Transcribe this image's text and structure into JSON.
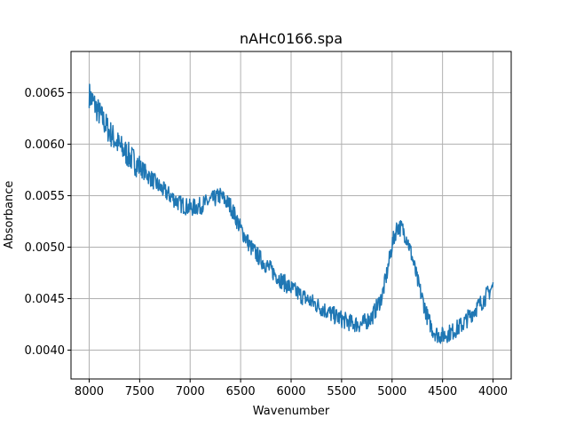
{
  "chart_data": {
    "type": "line",
    "title": "nAHc0166.spa",
    "xlabel": "Wavenumber",
    "ylabel": "Absorbance",
    "xlim": [
      8180,
      3820
    ],
    "ylim": [
      0.00372,
      0.0069
    ],
    "x_reversed": true,
    "grid": true,
    "x_ticks": [
      8000,
      7500,
      7000,
      6500,
      6000,
      5500,
      5000,
      4500,
      4000
    ],
    "x_tick_labels": [
      "8000",
      "7500",
      "7000",
      "6500",
      "6000",
      "5500",
      "5000",
      "4500",
      "4000"
    ],
    "y_ticks": [
      0.004,
      0.0045,
      0.005,
      0.0055,
      0.006,
      0.0065
    ],
    "y_tick_labels": [
      "0.0040",
      "0.0045",
      "0.0050",
      "0.0055",
      "0.0060",
      "0.0065"
    ],
    "series": [
      {
        "color": "#1f77b4",
        "x": [
          8000,
          7900,
          7800,
          7700,
          7600,
          7500,
          7400,
          7300,
          7200,
          7100,
          7000,
          6900,
          6800,
          6700,
          6600,
          6500,
          6400,
          6300,
          6200,
          6100,
          6000,
          5900,
          5800,
          5700,
          5600,
          5500,
          5400,
          5300,
          5200,
          5100,
          5050,
          5000,
          4950,
          4900,
          4850,
          4800,
          4750,
          4700,
          4650,
          4600,
          4550,
          4500,
          4400,
          4300,
          4200,
          4100,
          4000
        ],
        "y": [
          0.00648,
          0.0063,
          0.00612,
          0.00598,
          0.00588,
          0.00578,
          0.00568,
          0.00558,
          0.0055,
          0.00542,
          0.00538,
          0.0054,
          0.00545,
          0.0055,
          0.0054,
          0.00518,
          0.005,
          0.00488,
          0.00478,
          0.00468,
          0.0046,
          0.00453,
          0.00447,
          0.00441,
          0.00435,
          0.0043,
          0.00426,
          0.00425,
          0.00432,
          0.00452,
          0.00475,
          0.00502,
          0.0052,
          0.00518,
          0.00508,
          0.0049,
          0.00468,
          0.0045,
          0.00432,
          0.0042,
          0.00415,
          0.00414,
          0.00418,
          0.00425,
          0.00437,
          0.00448,
          0.00462
        ]
      }
    ]
  }
}
